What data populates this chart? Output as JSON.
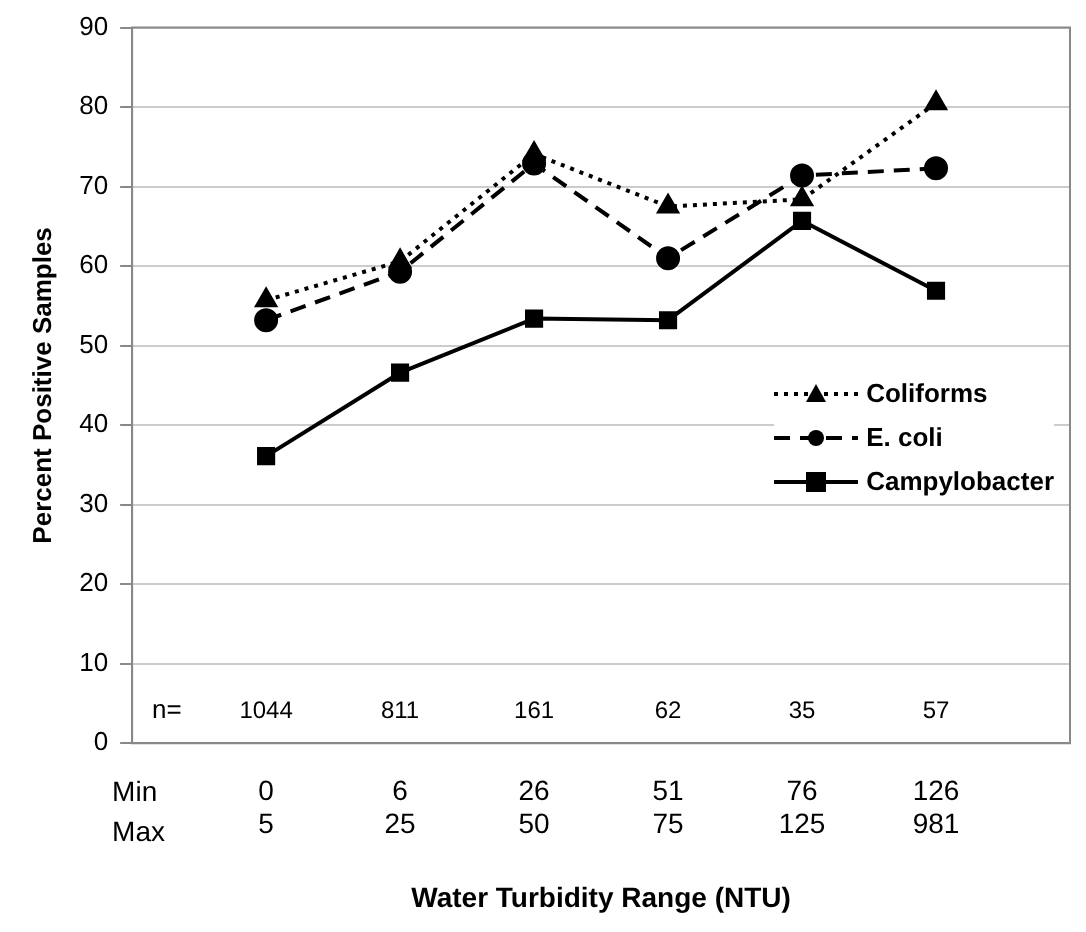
{
  "chart_data": {
    "type": "line",
    "xlabel": "Water Turbidity Range (NTU)",
    "ylabel": "Percent Positive Samples",
    "categories": [
      "0\n5",
      "6\n25",
      "26\n50",
      "51\n75",
      "76\n125",
      "126\n981"
    ],
    "series": [
      {
        "name": "Coliforms",
        "color": "#000000",
        "line_style": "dotted",
        "marker": "triangle",
        "values": [
          55.7,
          60.6,
          74.1,
          67.5,
          68.4,
          80.5
        ]
      },
      {
        "name": "E. coli",
        "color": "#000000",
        "line_style": "dashed",
        "marker": "circle",
        "values": [
          53.2,
          59.3,
          72.9,
          61,
          71.4,
          72.3
        ]
      },
      {
        "name": "Campylobacter",
        "color": "#000000",
        "line_style": "solid",
        "marker": "square",
        "values": [
          36.1,
          46.6,
          53.4,
          53.2,
          65.7,
          56.9
        ]
      }
    ],
    "ylim": [
      0,
      90
    ],
    "yticks": [
      0,
      10,
      20,
      30,
      40,
      50,
      60,
      70,
      80,
      90
    ],
    "grid": "y",
    "legend": "right",
    "annotations": [
      "n=",
      "1044",
      "811",
      "161",
      "62",
      "35",
      "57",
      "Min",
      "Max"
    ]
  }
}
